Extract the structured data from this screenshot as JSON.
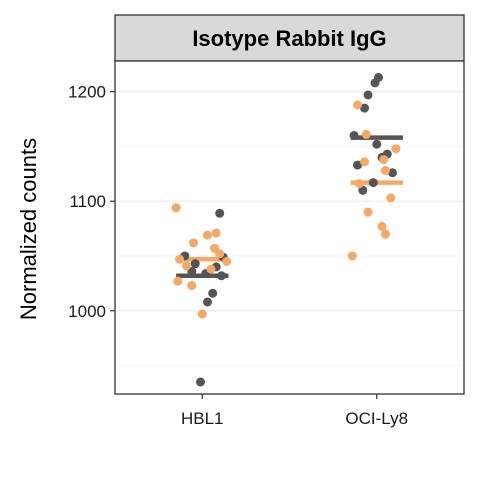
{
  "chart_data": {
    "type": "scatter",
    "facet_title": "Isotype Rabbit IgG",
    "xlabel": "",
    "ylabel": "Normalized counts",
    "categories": [
      "HBL1",
      "OCI-Ly8"
    ],
    "ylim": [
      924,
      1228
    ],
    "yticks": [
      1000,
      1100,
      1200
    ],
    "ytick_labels": [
      "1000",
      "1100",
      "1200"
    ],
    "grid": true,
    "legend": "none",
    "colors": {
      "dark": "#555555",
      "orange": "#f7a866"
    },
    "series": [
      {
        "color_key": "dark",
        "points": [
          {
            "category": "HBL1",
            "offset": 0.1,
            "y": 1089
          },
          {
            "category": "HBL1",
            "offset": -0.1,
            "y": 1050
          },
          {
            "category": "HBL1",
            "offset": 0.12,
            "y": 1049
          },
          {
            "category": "HBL1",
            "offset": -0.04,
            "y": 1043
          },
          {
            "category": "HBL1",
            "offset": 0.08,
            "y": 1040
          },
          {
            "category": "HBL1",
            "offset": -0.06,
            "y": 1036
          },
          {
            "category": "HBL1",
            "offset": 0.02,
            "y": 1034
          },
          {
            "category": "HBL1",
            "offset": 0.11,
            "y": 1032
          },
          {
            "category": "HBL1",
            "offset": 0.06,
            "y": 1016
          },
          {
            "category": "HBL1",
            "offset": 0.03,
            "y": 1008
          },
          {
            "category": "HBL1",
            "offset": -0.01,
            "y": 935
          },
          {
            "category": "OCI-Ly8",
            "offset": 0.01,
            "y": 1213
          },
          {
            "category": "OCI-Ly8",
            "offset": -0.01,
            "y": 1208
          },
          {
            "category": "OCI-Ly8",
            "offset": -0.05,
            "y": 1197
          },
          {
            "category": "OCI-Ly8",
            "offset": -0.07,
            "y": 1185
          },
          {
            "category": "OCI-Ly8",
            "offset": -0.13,
            "y": 1160
          },
          {
            "category": "OCI-Ly8",
            "offset": 0.0,
            "y": 1152
          },
          {
            "category": "OCI-Ly8",
            "offset": 0.06,
            "y": 1143
          },
          {
            "category": "OCI-Ly8",
            "offset": 0.03,
            "y": 1140
          },
          {
            "category": "OCI-Ly8",
            "offset": -0.11,
            "y": 1133
          },
          {
            "category": "OCI-Ly8",
            "offset": 0.09,
            "y": 1126
          },
          {
            "category": "OCI-Ly8",
            "offset": -0.02,
            "y": 1117
          },
          {
            "category": "OCI-Ly8",
            "offset": -0.08,
            "y": 1110
          }
        ]
      },
      {
        "color_key": "orange",
        "points": [
          {
            "category": "HBL1",
            "offset": -0.15,
            "y": 1094
          },
          {
            "category": "HBL1",
            "offset": 0.08,
            "y": 1071
          },
          {
            "category": "HBL1",
            "offset": 0.03,
            "y": 1069
          },
          {
            "category": "HBL1",
            "offset": -0.05,
            "y": 1062
          },
          {
            "category": "HBL1",
            "offset": 0.07,
            "y": 1057
          },
          {
            "category": "HBL1",
            "offset": 0.1,
            "y": 1052
          },
          {
            "category": "HBL1",
            "offset": -0.13,
            "y": 1047
          },
          {
            "category": "HBL1",
            "offset": 0.14,
            "y": 1045
          },
          {
            "category": "HBL1",
            "offset": -0.09,
            "y": 1041
          },
          {
            "category": "HBL1",
            "offset": 0.05,
            "y": 1038
          },
          {
            "category": "HBL1",
            "offset": -0.14,
            "y": 1027
          },
          {
            "category": "HBL1",
            "offset": -0.06,
            "y": 1023
          },
          {
            "category": "HBL1",
            "offset": 0.0,
            "y": 997
          },
          {
            "category": "OCI-Ly8",
            "offset": -0.11,
            "y": 1188
          },
          {
            "category": "OCI-Ly8",
            "offset": -0.06,
            "y": 1161
          },
          {
            "category": "OCI-Ly8",
            "offset": 0.11,
            "y": 1148
          },
          {
            "category": "OCI-Ly8",
            "offset": 0.04,
            "y": 1138
          },
          {
            "category": "OCI-Ly8",
            "offset": -0.07,
            "y": 1136
          },
          {
            "category": "OCI-Ly8",
            "offset": 0.05,
            "y": 1128
          },
          {
            "category": "OCI-Ly8",
            "offset": -0.1,
            "y": 1116
          },
          {
            "category": "OCI-Ly8",
            "offset": 0.08,
            "y": 1103
          },
          {
            "category": "OCI-Ly8",
            "offset": -0.05,
            "y": 1090
          },
          {
            "category": "OCI-Ly8",
            "offset": 0.03,
            "y": 1077
          },
          {
            "category": "OCI-Ly8",
            "offset": 0.05,
            "y": 1070
          },
          {
            "category": "OCI-Ly8",
            "offset": -0.14,
            "y": 1050
          }
        ]
      }
    ],
    "summary_lines": [
      {
        "category": "HBL1",
        "color_key": "orange",
        "y": 1047
      },
      {
        "category": "HBL1",
        "color_key": "dark",
        "y": 1032
      },
      {
        "category": "OCI-Ly8",
        "color_key": "dark",
        "y": 1158
      },
      {
        "category": "OCI-Ly8",
        "color_key": "orange",
        "y": 1117
      }
    ]
  }
}
